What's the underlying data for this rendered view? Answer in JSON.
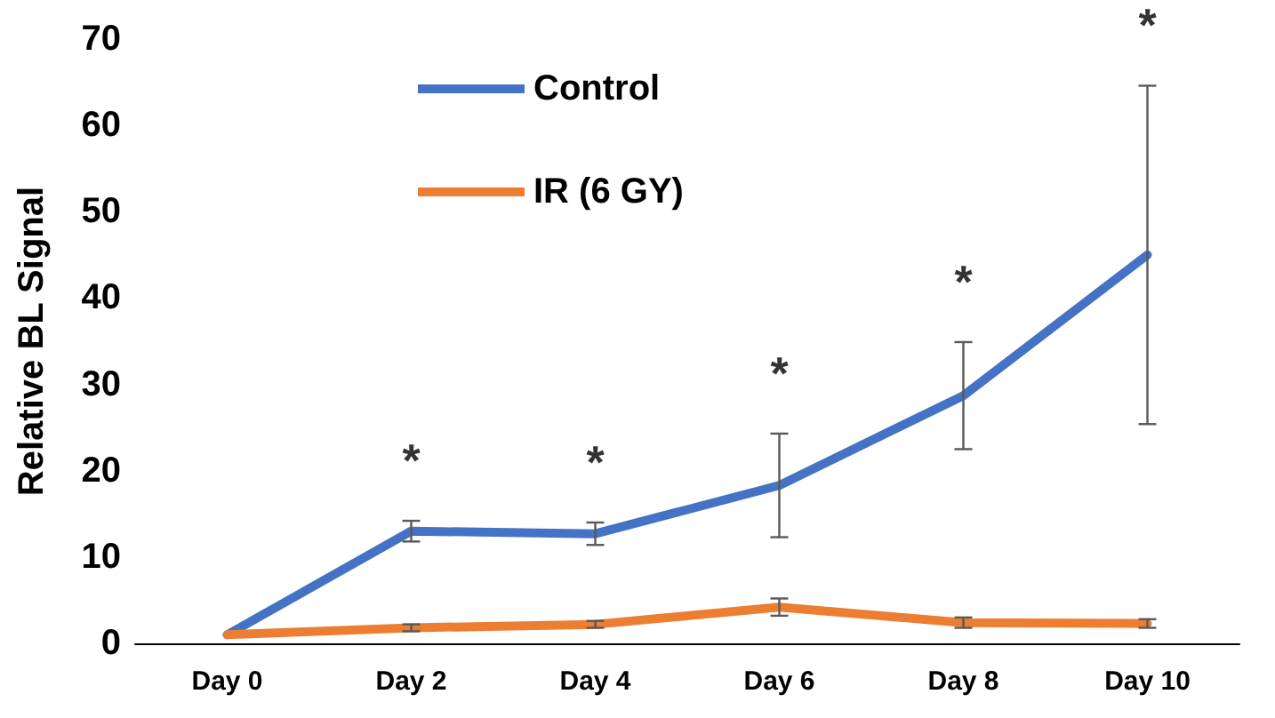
{
  "chart_data": {
    "type": "line",
    "ylabel": "Relative BL Signal",
    "categories": [
      "Day 0",
      "Day 2",
      "Day 4",
      "Day 6",
      "Day 8",
      "Day 10"
    ],
    "series": [
      {
        "name": "Control",
        "color": "#4472c4",
        "values": [
          1,
          13,
          12.7,
          18.3,
          28.7,
          45
        ],
        "errors": [
          null,
          1.2,
          1.3,
          6,
          6.2,
          19.6
        ]
      },
      {
        "name": "IR (6 GY)",
        "color": "#ed7d31",
        "values": [
          1,
          1.8,
          2.2,
          4.2,
          2.4,
          2.3
        ],
        "errors": [
          null,
          0.4,
          0.4,
          1,
          0.6,
          0.5
        ]
      }
    ],
    "ylim": [
      0,
      70
    ],
    "yticks": [
      0,
      10,
      20,
      30,
      40,
      50,
      60,
      70
    ],
    "grid": false,
    "legend": "top left",
    "marker": "none",
    "line_style": "solid",
    "annotations": [
      {
        "text": "*",
        "x": "Day 2",
        "y": 14.2
      },
      {
        "text": "*",
        "x": "Day 4",
        "y": 14
      },
      {
        "text": "*",
        "x": "Day 6",
        "y": 24.3
      },
      {
        "text": "*",
        "x": "Day 8",
        "y": 34.9
      },
      {
        "text": "*",
        "x": "Day 10",
        "y": 64.6
      }
    ]
  }
}
